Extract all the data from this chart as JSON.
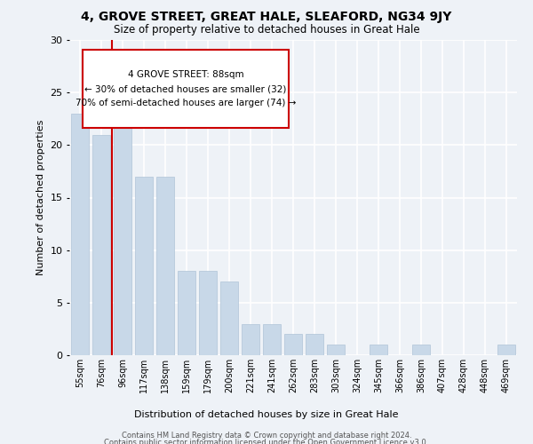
{
  "title": "4, GROVE STREET, GREAT HALE, SLEAFORD, NG34 9JY",
  "subtitle": "Size of property relative to detached houses in Great Hale",
  "xlabel": "Distribution of detached houses by size in Great Hale",
  "ylabel": "Number of detached properties",
  "bar_color": "#c8d8e8",
  "bar_edge_color": "#b0c4d8",
  "categories": [
    "55sqm",
    "76sqm",
    "96sqm",
    "117sqm",
    "138sqm",
    "159sqm",
    "179sqm",
    "200sqm",
    "221sqm",
    "241sqm",
    "262sqm",
    "283sqm",
    "303sqm",
    "324sqm",
    "345sqm",
    "366sqm",
    "386sqm",
    "407sqm",
    "428sqm",
    "448sqm",
    "469sqm"
  ],
  "values": [
    23,
    21,
    22,
    17,
    17,
    8,
    8,
    7,
    3,
    3,
    2,
    2,
    1,
    0,
    1,
    0,
    1,
    0,
    0,
    0,
    1
  ],
  "ylim": [
    0,
    30
  ],
  "yticks": [
    0,
    5,
    10,
    15,
    20,
    25,
    30
  ],
  "annotation_line1": "4 GROVE STREET: 88sqm",
  "annotation_line2": "← 30% of detached houses are smaller (32)",
  "annotation_line3": "70% of semi-detached houses are larger (74) →",
  "vline_color": "#cc0000",
  "footer_line1": "Contains HM Land Registry data © Crown copyright and database right 2024.",
  "footer_line2": "Contains public sector information licensed under the Open Government Licence v3.0.",
  "background_color": "#eef2f7",
  "grid_color": "#ffffff"
}
